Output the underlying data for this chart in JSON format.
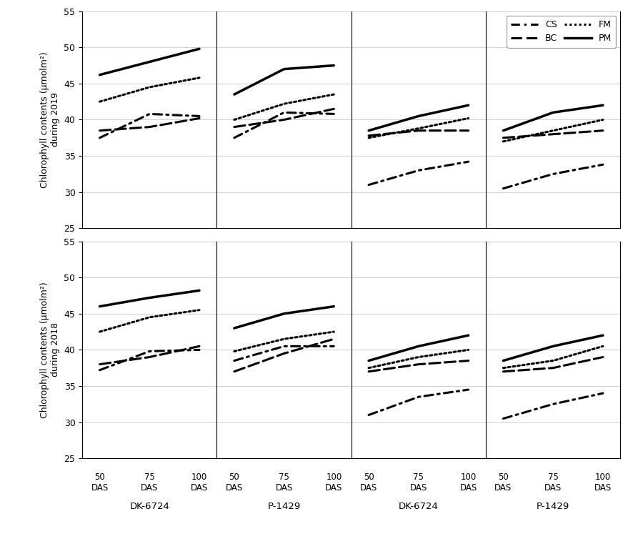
{
  "ylim": [
    25,
    55
  ],
  "yticks": [
    25,
    30,
    35,
    40,
    45,
    50,
    55
  ],
  "x": [
    0,
    1,
    2
  ],
  "xlabel_vals": [
    "50\nDAS",
    "75\nDAS",
    "100\nDAS"
  ],
  "group_labels": [
    "DK-6724",
    "P-1429",
    "DK-6724",
    "P-1429"
  ],
  "legend_labels": [
    "CS",
    "BC",
    "FM",
    "PM"
  ],
  "top_data": [
    {
      "CS": [
        37.5,
        40.8,
        40.5
      ],
      "BC": [
        38.5,
        39.0,
        40.2
      ],
      "FM": [
        42.5,
        44.5,
        45.8
      ],
      "PM": [
        46.2,
        48.0,
        49.8
      ]
    },
    {
      "CS": [
        37.5,
        41.0,
        40.8
      ],
      "BC": [
        39.0,
        40.0,
        41.5
      ],
      "FM": [
        40.0,
        42.2,
        43.5
      ],
      "PM": [
        43.5,
        47.0,
        47.5
      ]
    },
    {
      "CS": [
        31.0,
        33.0,
        34.2
      ],
      "BC": [
        37.8,
        38.5,
        38.5
      ],
      "FM": [
        37.5,
        38.8,
        40.2
      ],
      "PM": [
        38.5,
        40.5,
        42.0
      ]
    },
    {
      "CS": [
        30.5,
        32.5,
        33.8
      ],
      "BC": [
        37.5,
        38.0,
        38.5
      ],
      "FM": [
        37.0,
        38.5,
        40.0
      ],
      "PM": [
        38.5,
        41.0,
        42.0
      ]
    }
  ],
  "bottom_data": [
    {
      "CS": [
        37.2,
        39.8,
        40.0
      ],
      "BC": [
        38.0,
        39.0,
        40.5
      ],
      "FM": [
        42.5,
        44.5,
        45.5
      ],
      "PM": [
        46.0,
        47.2,
        48.2
      ]
    },
    {
      "CS": [
        38.5,
        40.5,
        40.5
      ],
      "BC": [
        37.0,
        39.5,
        41.5
      ],
      "FM": [
        39.8,
        41.5,
        42.5
      ],
      "PM": [
        43.0,
        45.0,
        46.0
      ]
    },
    {
      "CS": [
        31.0,
        33.5,
        34.5
      ],
      "BC": [
        37.0,
        38.0,
        38.5
      ],
      "FM": [
        37.5,
        39.0,
        40.0
      ],
      "PM": [
        38.5,
        40.5,
        42.0
      ]
    },
    {
      "CS": [
        30.5,
        32.5,
        34.0
      ],
      "BC": [
        37.0,
        37.5,
        39.0
      ],
      "FM": [
        37.5,
        38.5,
        40.5
      ],
      "PM": [
        38.5,
        40.5,
        42.0
      ]
    }
  ],
  "line_color": "#000000",
  "grid_color": "#c8c8c8",
  "bg_color": "#ffffff",
  "ylabel_2019": "Chlorophyll contents (μmolm²)\nduring 2019",
  "ylabel_2018": "Chlorophyll contents (μmolm²)\nduring 2018"
}
